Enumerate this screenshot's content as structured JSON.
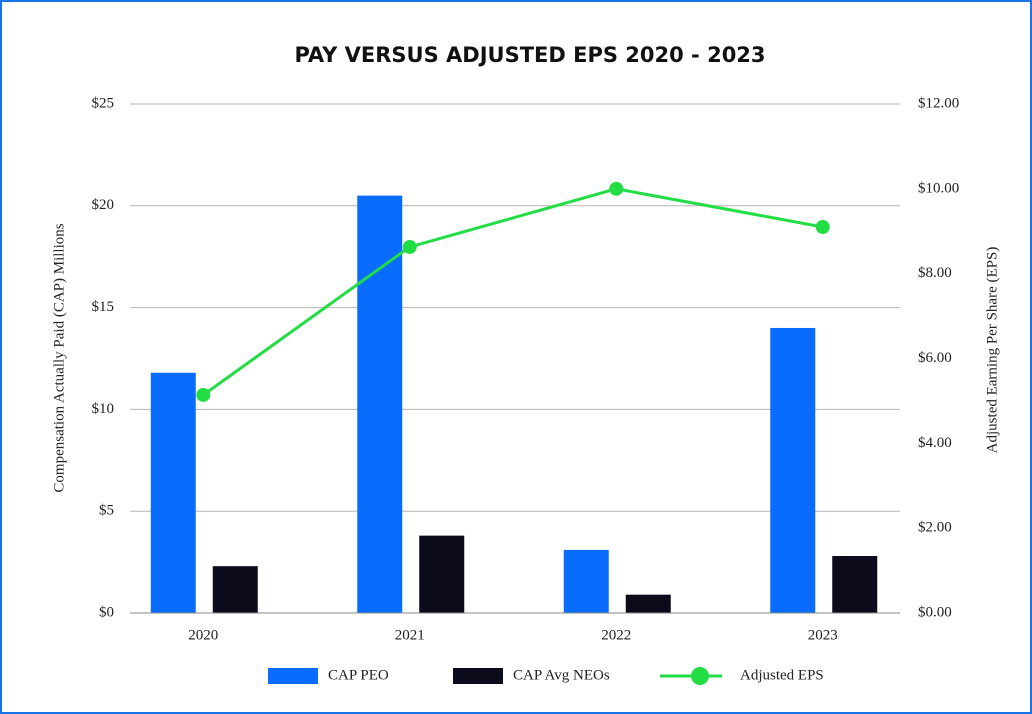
{
  "chart_data": {
    "type": "bar",
    "title": "PAY VERSUS ADJUSTED EPS 2020 - 2023",
    "y_label": "Compensation Actually Paid (CAP) Millions",
    "y2_label": "Adjusted Earning Per Share (EPS)",
    "categories": [
      "2020",
      "2021",
      "2022",
      "2023"
    ],
    "series": [
      {
        "name": "CAP PEO",
        "color": "#0a6cff",
        "values": [
          11.8,
          20.5,
          3.1,
          14.0
        ]
      },
      {
        "name": "CAP Avg NEOs",
        "color": "#0b0b1c",
        "values": [
          2.3,
          3.8,
          0.9,
          2.8
        ]
      },
      {
        "name": "Adjusted EPS",
        "color": "#22dd44",
        "type": "line",
        "axis": "y2",
        "values": [
          5.14,
          8.63,
          10.0,
          9.1
        ]
      }
    ],
    "ylim": [
      0,
      25
    ],
    "yticks": [
      {
        "value": 0,
        "label": "$0"
      },
      {
        "value": 5,
        "label": "$5"
      },
      {
        "value": 10,
        "label": "$10"
      },
      {
        "value": 15,
        "label": "$15"
      },
      {
        "value": 20,
        "label": "$20"
      },
      {
        "value": 25,
        "label": "$25"
      }
    ],
    "y2lim": [
      0,
      12
    ],
    "y2ticks": [
      {
        "value": 0,
        "label": "$0.00"
      },
      {
        "value": 2,
        "label": "$2.00"
      },
      {
        "value": 4,
        "label": "$4.00"
      },
      {
        "value": 6,
        "label": "$6.00"
      },
      {
        "value": 8,
        "label": "$8.00"
      },
      {
        "value": 10,
        "label": "$10.00"
      },
      {
        "value": 12,
        "label": "$12.00"
      }
    ],
    "grid": true,
    "legend": "bottom"
  }
}
